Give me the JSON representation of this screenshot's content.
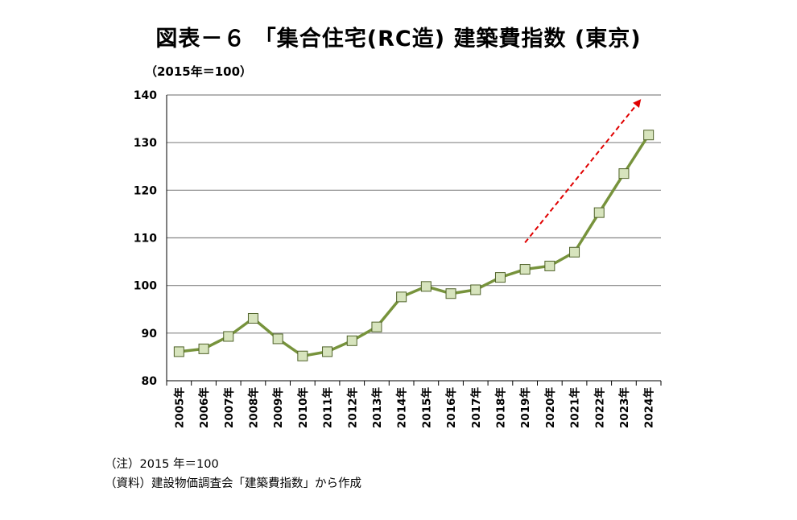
{
  "title": "図表－６ 「集合住宅(RC造) 建築費指数 (東京)",
  "unit_label": "（2015年＝100）",
  "notes": {
    "note": "（注）2015 年＝100",
    "source": "（資料）建設物価調査会「建築費指数」から作成"
  },
  "colors": {
    "line": "#77933c",
    "marker_fill": "#d7e4bd",
    "marker_stroke": "#4f6228",
    "grid": "#868686",
    "arrow": "#e00000"
  },
  "chart_data": {
    "type": "line",
    "title": "図表－６ 「集合住宅(RC造) 建築費指数 (東京)",
    "ylabel": "（2015年＝100）",
    "xlabel": "",
    "ylim": [
      80,
      140
    ],
    "yticks": [
      80,
      90,
      100,
      110,
      120,
      130,
      140
    ],
    "grid": true,
    "categories": [
      "2005年",
      "2006年",
      "2007年",
      "2008年",
      "2009年",
      "2010年",
      "2011年",
      "2012年",
      "2013年",
      "2014年",
      "2015年",
      "2016年",
      "2017年",
      "2018年",
      "2019年",
      "2020年",
      "2021年",
      "2022年",
      "2023年",
      "2024年"
    ],
    "values": [
      86.1,
      86.7,
      89.3,
      93.1,
      88.8,
      85.2,
      86.1,
      88.4,
      91.3,
      97.6,
      99.8,
      98.3,
      99.1,
      101.7,
      103.4,
      104.1,
      107.0,
      115.3,
      123.5,
      131.6
    ],
    "annotations": [
      {
        "type": "dashed-arrow",
        "from": {
          "x": "2019年",
          "y": 109
        },
        "to": {
          "x": "2024年",
          "y": 139
        }
      }
    ]
  }
}
